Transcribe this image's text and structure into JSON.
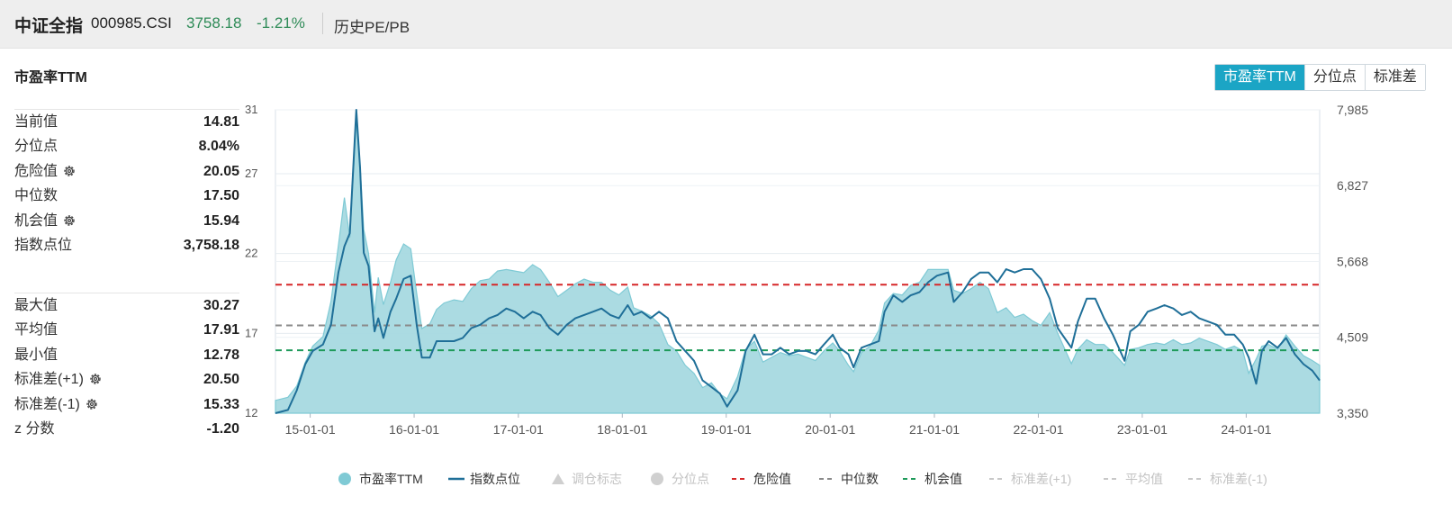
{
  "header": {
    "index_name": "中证全指",
    "index_code": "000985.CSI",
    "price": "3758.18",
    "change": "-1.21%",
    "history_link": "历史PE/PB"
  },
  "section_title": "市盈率TTM",
  "metric_buttons": [
    {
      "label": "市盈率TTM",
      "active": true
    },
    {
      "label": "分位点",
      "active": false
    },
    {
      "label": "标准差",
      "active": false
    }
  ],
  "stats_group1": [
    {
      "label": "当前值",
      "value": "14.81",
      "gear": false
    },
    {
      "label": "分位点",
      "value": "8.04%",
      "gear": false
    },
    {
      "label": "危险值",
      "value": "20.05",
      "gear": true
    },
    {
      "label": "中位数",
      "value": "17.50",
      "gear": false
    },
    {
      "label": "机会值",
      "value": "15.94",
      "gear": true
    },
    {
      "label": "指数点位",
      "value": "3,758.18",
      "gear": false
    }
  ],
  "stats_group2": [
    {
      "label": "最大值",
      "value": "30.27",
      "gear": false
    },
    {
      "label": "平均值",
      "value": "17.91",
      "gear": false
    },
    {
      "label": "最小值",
      "value": "12.78",
      "gear": false
    },
    {
      "label": "标准差(+1)",
      "value": "20.50",
      "gear": true
    },
    {
      "label": "标准差(-1)",
      "value": "15.33",
      "gear": true
    },
    {
      "label": "z 分数",
      "value": "-1.20",
      "gear": false
    }
  ],
  "colors": {
    "pe_fill": "#a6d9e0",
    "pe_line": "#7fcad5",
    "index_line": "#1f6f98",
    "danger": "#d62728",
    "median": "#8a8a8a",
    "opportunity": "#1e9a5a",
    "disabled": "#c8c8c8",
    "active_button": "#1ba5c5"
  },
  "chart_data": {
    "type": "area",
    "x_ticks": [
      "15-01-01",
      "16-01-01",
      "17-01-01",
      "18-01-01",
      "19-01-01",
      "20-01-01",
      "21-01-01",
      "22-01-01",
      "23-01-01",
      "24-01-01"
    ],
    "x_range": [
      "2014-09-01",
      "2024-09-15"
    ],
    "y_left_ticks": [
      "12",
      "17",
      "22",
      "27",
      "31"
    ],
    "y_left_range": [
      12,
      31
    ],
    "y_right_ticks": [
      "3,350",
      "4,509",
      "5,668",
      "6,827",
      "7,985"
    ],
    "y_right_range": [
      3350,
      7985
    ],
    "reference_lines": {
      "danger": 20.05,
      "median": 17.5,
      "opportunity": 15.94
    },
    "grid": true,
    "legend_position": "bottom",
    "series": [
      {
        "name": "市盈率TTM",
        "axis": "left",
        "style": "area",
        "x": [
          "2014-09-01",
          "2014-10-15",
          "2014-11-15",
          "2014-12-15",
          "2015-01-10",
          "2015-02-15",
          "2015-03-15",
          "2015-04-10",
          "2015-05-01",
          "2015-05-20",
          "2015-06-12",
          "2015-06-25",
          "2015-07-08",
          "2015-07-25",
          "2015-08-15",
          "2015-08-28",
          "2015-09-15",
          "2015-10-10",
          "2015-10-30",
          "2015-11-25",
          "2015-12-20",
          "2016-01-10",
          "2016-01-28",
          "2016-02-25",
          "2016-03-20",
          "2016-04-15",
          "2016-05-20",
          "2016-06-20",
          "2016-07-20",
          "2016-08-20",
          "2016-09-20",
          "2016-10-20",
          "2016-11-20",
          "2016-12-20",
          "2017-01-20",
          "2017-02-20",
          "2017-03-20",
          "2017-04-20",
          "2017-05-20",
          "2017-06-20",
          "2017-07-20",
          "2017-08-20",
          "2017-09-20",
          "2017-10-20",
          "2017-11-20",
          "2017-12-20",
          "2018-01-20",
          "2018-02-10",
          "2018-03-10",
          "2018-04-10",
          "2018-05-10",
          "2018-06-10",
          "2018-07-10",
          "2018-08-10",
          "2018-09-10",
          "2018-10-10",
          "2018-11-10",
          "2018-12-10",
          "2019-01-04",
          "2019-02-10",
          "2019-03-10",
          "2019-04-10",
          "2019-05-10",
          "2019-06-10",
          "2019-07-10",
          "2019-08-10",
          "2019-09-10",
          "2019-10-10",
          "2019-11-10",
          "2019-12-10",
          "2020-01-10",
          "2020-02-03",
          "2020-03-05",
          "2020-03-23",
          "2020-04-20",
          "2020-05-20",
          "2020-06-20",
          "2020-07-10",
          "2020-08-10",
          "2020-09-10",
          "2020-10-10",
          "2020-11-10",
          "2020-12-10",
          "2021-01-10",
          "2021-02-18",
          "2021-03-10",
          "2021-04-10",
          "2021-05-10",
          "2021-06-10",
          "2021-07-10",
          "2021-08-10",
          "2021-09-10",
          "2021-10-10",
          "2021-11-10",
          "2021-12-10",
          "2022-01-10",
          "2022-02-10",
          "2022-03-10",
          "2022-04-27",
          "2022-05-20",
          "2022-06-20",
          "2022-07-20",
          "2022-08-20",
          "2022-09-20",
          "2022-10-31",
          "2022-11-20",
          "2022-12-20",
          "2023-01-20",
          "2023-02-20",
          "2023-03-20",
          "2023-04-20",
          "2023-05-20",
          "2023-06-20",
          "2023-07-20",
          "2023-08-20",
          "2023-09-20",
          "2023-10-20",
          "2023-11-20",
          "2023-12-20",
          "2024-01-10",
          "2024-02-05",
          "2024-02-25",
          "2024-03-20",
          "2024-04-20",
          "2024-05-20",
          "2024-06-20",
          "2024-07-20",
          "2024-08-20",
          "2024-09-15"
        ],
        "y": [
          12.8,
          13.0,
          13.7,
          15.2,
          16.2,
          16.8,
          19.0,
          22.5,
          25.5,
          23.0,
          30.3,
          27.5,
          23.5,
          22.0,
          18.3,
          20.5,
          18.8,
          20.2,
          21.6,
          22.6,
          22.3,
          19.5,
          17.3,
          17.6,
          18.5,
          18.9,
          19.1,
          19.0,
          19.8,
          20.3,
          20.4,
          20.9,
          21.0,
          20.9,
          20.8,
          21.3,
          21.0,
          20.2,
          19.3,
          19.7,
          20.1,
          20.4,
          20.2,
          20.2,
          19.7,
          19.4,
          19.9,
          18.6,
          18.4,
          18.1,
          17.6,
          16.3,
          15.9,
          15.0,
          14.5,
          13.6,
          13.9,
          13.2,
          12.9,
          14.3,
          16.0,
          16.5,
          15.2,
          15.5,
          15.8,
          15.6,
          15.7,
          15.5,
          15.3,
          15.9,
          16.4,
          15.9,
          15.0,
          14.6,
          15.8,
          16.2,
          17.2,
          18.9,
          19.5,
          19.4,
          20.0,
          20.2,
          21.0,
          21.0,
          21.0,
          19.7,
          19.5,
          19.8,
          20.2,
          19.8,
          18.3,
          18.6,
          18.0,
          18.2,
          17.8,
          17.5,
          18.3,
          17.0,
          15.1,
          16.0,
          16.6,
          16.3,
          16.3,
          15.8,
          15.0,
          16.0,
          16.1,
          16.3,
          16.4,
          16.3,
          16.6,
          16.3,
          16.4,
          16.7,
          16.5,
          16.3,
          16.0,
          16.2,
          15.9,
          14.5,
          15.4,
          16.2,
          16.3,
          16.0,
          16.9,
          16.2,
          15.6,
          15.3,
          15.0
        ]
      },
      {
        "name": "指数点位",
        "axis": "right",
        "style": "line",
        "x": [
          "2014-09-01",
          "2014-10-15",
          "2014-11-15",
          "2014-12-15",
          "2015-01-10",
          "2015-02-15",
          "2015-03-15",
          "2015-04-10",
          "2015-05-01",
          "2015-05-20",
          "2015-06-12",
          "2015-06-25",
          "2015-07-08",
          "2015-07-25",
          "2015-08-15",
          "2015-08-28",
          "2015-09-15",
          "2015-10-10",
          "2015-10-30",
          "2015-11-25",
          "2015-12-20",
          "2016-01-10",
          "2016-01-28",
          "2016-02-25",
          "2016-03-20",
          "2016-04-15",
          "2016-05-20",
          "2016-06-20",
          "2016-07-20",
          "2016-08-20",
          "2016-09-20",
          "2016-10-20",
          "2016-11-20",
          "2016-12-20",
          "2017-01-20",
          "2017-02-20",
          "2017-03-20",
          "2017-04-20",
          "2017-05-20",
          "2017-06-20",
          "2017-07-20",
          "2017-08-20",
          "2017-09-20",
          "2017-10-20",
          "2017-11-20",
          "2017-12-20",
          "2018-01-20",
          "2018-02-10",
          "2018-03-10",
          "2018-04-10",
          "2018-05-10",
          "2018-06-10",
          "2018-07-10",
          "2018-08-10",
          "2018-09-10",
          "2018-10-10",
          "2018-11-10",
          "2018-12-10",
          "2019-01-04",
          "2019-02-10",
          "2019-03-10",
          "2019-04-10",
          "2019-05-10",
          "2019-06-10",
          "2019-07-10",
          "2019-08-10",
          "2019-09-10",
          "2019-10-10",
          "2019-11-10",
          "2019-12-10",
          "2020-01-10",
          "2020-02-03",
          "2020-03-05",
          "2020-03-23",
          "2020-04-20",
          "2020-05-20",
          "2020-06-20",
          "2020-07-10",
          "2020-08-10",
          "2020-09-10",
          "2020-10-10",
          "2020-11-10",
          "2020-12-10",
          "2021-01-10",
          "2021-02-18",
          "2021-03-10",
          "2021-04-10",
          "2021-05-10",
          "2021-06-10",
          "2021-07-10",
          "2021-08-10",
          "2021-09-10",
          "2021-10-10",
          "2021-11-10",
          "2021-12-10",
          "2022-01-10",
          "2022-02-10",
          "2022-03-10",
          "2022-04-27",
          "2022-05-20",
          "2022-06-20",
          "2022-07-20",
          "2022-08-20",
          "2022-09-20",
          "2022-10-31",
          "2022-11-20",
          "2022-12-20",
          "2023-01-20",
          "2023-02-20",
          "2023-03-20",
          "2023-04-20",
          "2023-05-20",
          "2023-06-20",
          "2023-07-20",
          "2023-08-20",
          "2023-09-20",
          "2023-10-20",
          "2023-11-20",
          "2023-12-20",
          "2024-01-10",
          "2024-02-05",
          "2024-02-25",
          "2024-03-20",
          "2024-04-20",
          "2024-05-20",
          "2024-06-20",
          "2024-07-20",
          "2024-08-20",
          "2024-09-15"
        ],
        "y": [
          3350,
          3400,
          3700,
          4100,
          4300,
          4400,
          4700,
          5500,
          5900,
          6100,
          7985,
          7100,
          5800,
          5600,
          4600,
          4800,
          4500,
          4900,
          5100,
          5400,
          5450,
          4700,
          4200,
          4200,
          4450,
          4450,
          4450,
          4500,
          4650,
          4700,
          4800,
          4850,
          4950,
          4900,
          4800,
          4900,
          4850,
          4650,
          4550,
          4700,
          4800,
          4850,
          4900,
          4950,
          4850,
          4800,
          5000,
          4850,
          4900,
          4800,
          4900,
          4800,
          4450,
          4300,
          4150,
          3850,
          3750,
          3650,
          3450,
          3700,
          4300,
          4550,
          4250,
          4250,
          4350,
          4250,
          4300,
          4300,
          4250,
          4400,
          4550,
          4350,
          4250,
          4050,
          4350,
          4400,
          4450,
          4900,
          5150,
          5050,
          5150,
          5200,
          5350,
          5450,
          5500,
          5050,
          5200,
          5400,
          5500,
          5500,
          5350,
          5550,
          5500,
          5550,
          5550,
          5400,
          5100,
          4650,
          4350,
          4750,
          5100,
          5100,
          4800,
          4550,
          4150,
          4600,
          4700,
          4900,
          4950,
          5000,
          4950,
          4850,
          4900,
          4800,
          4750,
          4700,
          4550,
          4550,
          4400,
          4200,
          3800,
          4300,
          4450,
          4350,
          4500,
          4250,
          4100,
          4000,
          3850
        ]
      }
    ]
  },
  "legend": [
    {
      "label": "市盈率TTM",
      "symbol": "circle",
      "enabled": true
    },
    {
      "label": "指数点位",
      "symbol": "line",
      "enabled": true
    },
    {
      "label": "调仓标志",
      "symbol": "triangle",
      "enabled": false
    },
    {
      "label": "分位点",
      "symbol": "circle",
      "enabled": false
    },
    {
      "label": "危险值",
      "symbol": "dash-red",
      "enabled": true
    },
    {
      "label": "中位数",
      "symbol": "dash-gray",
      "enabled": true
    },
    {
      "label": "机会值",
      "symbol": "dash-green",
      "enabled": true
    },
    {
      "label": "标准差(+1)",
      "symbol": "dash",
      "enabled": false
    },
    {
      "label": "平均值",
      "symbol": "dash",
      "enabled": false
    },
    {
      "label": "标准差(-1)",
      "symbol": "dash",
      "enabled": false
    }
  ]
}
